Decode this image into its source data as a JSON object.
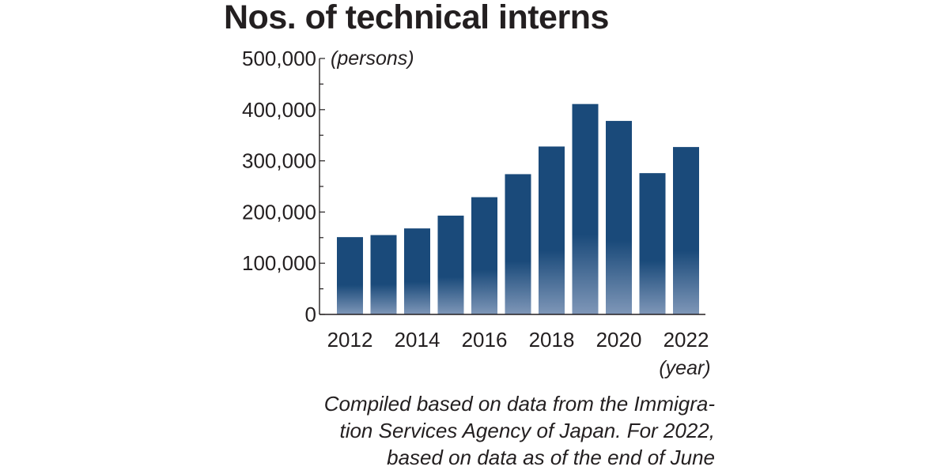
{
  "chart_data": {
    "type": "bar",
    "title": "Nos. of technical interns",
    "ylabel": "(persons)",
    "xlabel": "(year)",
    "categories": [
      "2012",
      "2013",
      "2014",
      "2015",
      "2016",
      "2017",
      "2018",
      "2019",
      "2020",
      "2021",
      "2022"
    ],
    "values": [
      151000,
      155000,
      168000,
      193000,
      229000,
      274000,
      328000,
      411000,
      378000,
      276000,
      327000
    ],
    "x_tick_labels": [
      "2012",
      "2014",
      "2016",
      "2018",
      "2020",
      "2022"
    ],
    "y_tick_labels": [
      "0",
      "100,000",
      "200,000",
      "300,000",
      "400,000",
      "500,000"
    ],
    "ylim": [
      0,
      500000
    ],
    "grid": false,
    "bar_color": "#1a4a7a",
    "bar_fade_color": "#7f97b8"
  },
  "note": {
    "line1": "Compiled based on data from the Immigra-",
    "line2": "tion Services Agency of Japan. For 2022,",
    "line3": "based on data as of the end of June"
  }
}
